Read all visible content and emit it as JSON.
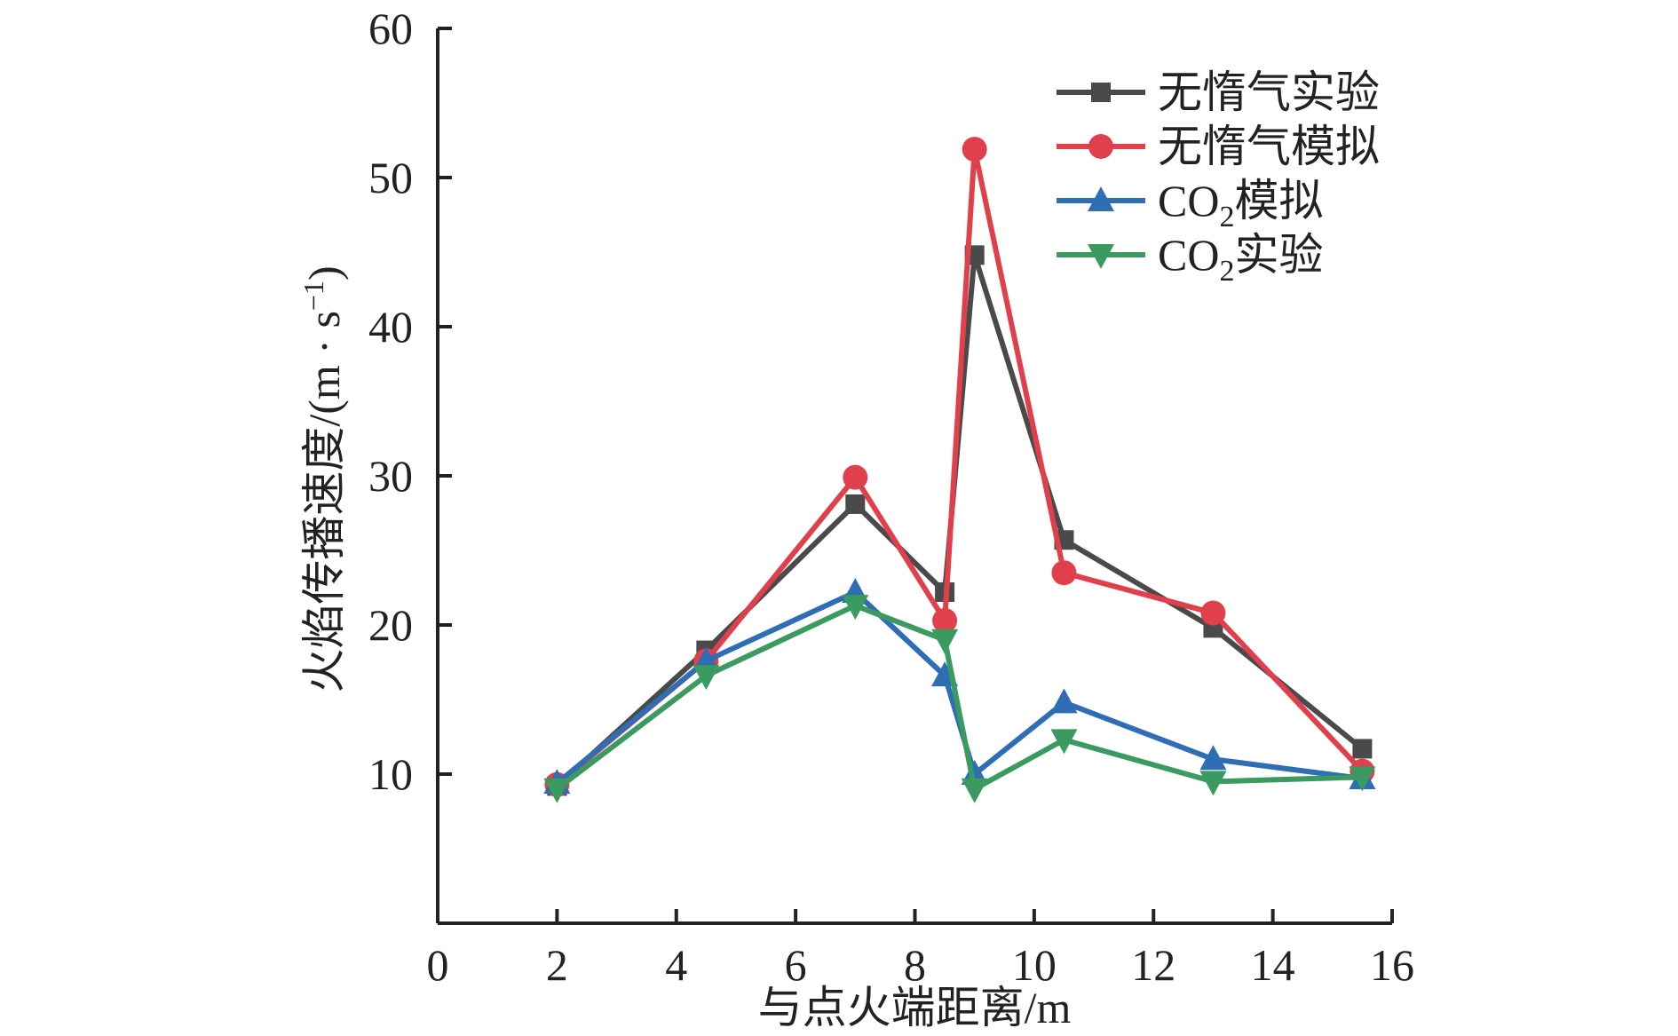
{
  "chart_data": {
    "type": "line",
    "title": "",
    "xlabel": "与点火端距离/m",
    "ylabel": "火焰传播速度/(m · s⁻¹)",
    "ylabel_main": "火焰传播速度/(m · s",
    "ylabel_sup": "−1",
    "ylabel_close": ")",
    "xlim": [
      0,
      16
    ],
    "ylim": [
      0,
      60
    ],
    "x_ticks": [
      "0",
      "2",
      "4",
      "6",
      "8",
      "10",
      "12",
      "14",
      "16"
    ],
    "y_ticks": [
      "10",
      "20",
      "30",
      "40",
      "50",
      "60"
    ],
    "x": [
      2,
      4.5,
      7,
      8.5,
      9,
      10.5,
      13,
      15.5
    ],
    "grid": false,
    "legend_position": "top-right",
    "series": [
      {
        "name": "无惰气实验",
        "label_pre": "",
        "label_sub": "",
        "label_post": "无惰气实验",
        "marker": "square",
        "color": "#4a4a4a",
        "values": [
          9.2,
          18.3,
          28.1,
          22.2,
          44.8,
          25.7,
          19.8,
          11.7
        ]
      },
      {
        "name": "无惰气模拟",
        "label_pre": "",
        "label_sub": "",
        "label_post": "无惰气模拟",
        "marker": "circle",
        "color": "#e0404c",
        "values": [
          9.3,
          17.6,
          29.9,
          20.3,
          51.9,
          23.5,
          20.8,
          10.2
        ]
      },
      {
        "name": "CO₂模拟",
        "label_pre": "CO",
        "label_sub": "2",
        "label_post": "模拟",
        "marker": "triangle-up",
        "color": "#2f6db5",
        "values": [
          9.4,
          17.6,
          22.2,
          16.6,
          10.0,
          14.8,
          11.0,
          9.7
        ]
      },
      {
        "name": "CO₂实验",
        "label_pre": "CO",
        "label_sub": "2",
        "label_post": "实验",
        "marker": "triangle-down",
        "color": "#3a9a5f",
        "values": [
          9.0,
          16.6,
          21.3,
          19.0,
          9.0,
          12.3,
          9.5,
          9.8
        ]
      }
    ]
  }
}
